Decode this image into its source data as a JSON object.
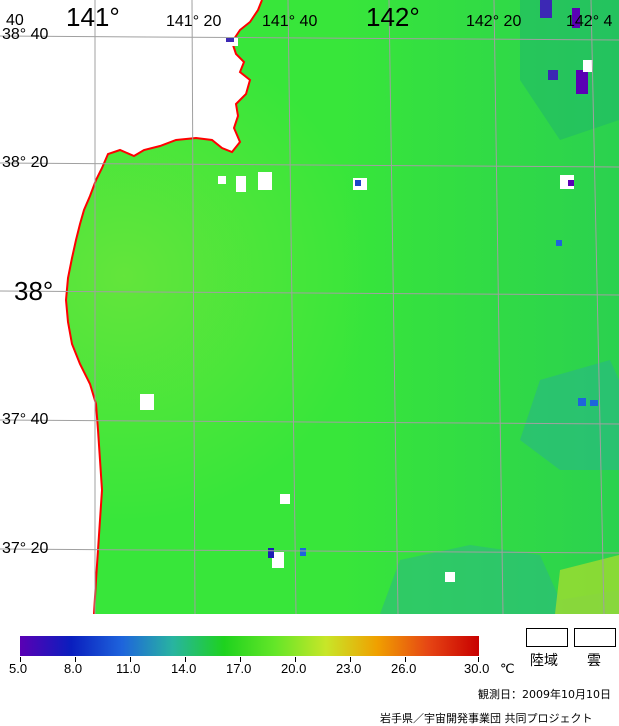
{
  "map": {
    "top_left_label": "40",
    "lon_labels": [
      "141°",
      "141° 20",
      "141° 40",
      "142°",
      "142° 20",
      "142° 4"
    ],
    "lat_labels": [
      "38° 40",
      "38° 20",
      "38°",
      "37° 40",
      "37° 20"
    ],
    "colors": {
      "sea_main": "#38e63a",
      "sea_warm": "#78e83c",
      "sea_cool": "#20c860",
      "land": "#ffffff",
      "coast": "#ff0000",
      "grid": "#a0a0a0"
    }
  },
  "colorbar": {
    "ticks": [
      "5.0",
      "8.0",
      "11.0",
      "14.0",
      "17.0",
      "20.0",
      "23.0",
      "26.0",
      "30.0"
    ],
    "unit": "℃",
    "stops": [
      "#5a00b4",
      "#0a1ebe",
      "#1e64dc",
      "#28b4a0",
      "#1ed21e",
      "#64e628",
      "#c8e628",
      "#f0a000",
      "#e64614",
      "#c80000"
    ]
  },
  "legend": {
    "land_label": "陸域",
    "cloud_label": "雲"
  },
  "footer": {
    "date_text": "観測日：2009年10月10日",
    "credit_text": "岩手県／宇宙開発事業団 共同プロジェクト"
  }
}
